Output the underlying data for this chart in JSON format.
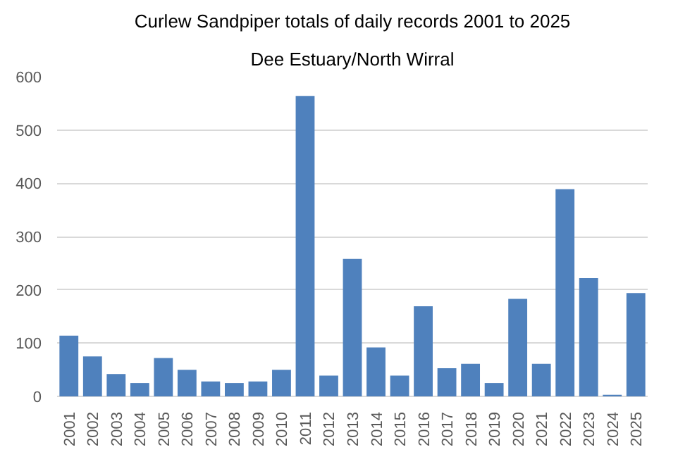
{
  "chart_data": {
    "type": "bar",
    "title": "Curlew Sandpiper totals of daily records 2001 to 2025",
    "subtitle": "Dee Estuary/North Wirral",
    "categories": [
      "2001",
      "2002",
      "2003",
      "2004",
      "2005",
      "2006",
      "2007",
      "2008",
      "2009",
      "2010",
      "2011",
      "2012",
      "2013",
      "2014",
      "2015",
      "2016",
      "2017",
      "2018",
      "2019",
      "2020",
      "2021",
      "2022",
      "2023",
      "2024",
      "2025"
    ],
    "values": [
      114,
      75,
      42,
      25,
      72,
      50,
      28,
      25,
      28,
      50,
      564,
      39,
      258,
      92,
      39,
      169,
      53,
      61,
      25,
      183,
      61,
      389,
      222,
      3,
      194
    ],
    "color": "#4f81bd",
    "ylim": [
      0,
      600
    ],
    "yticks": [
      0,
      100,
      200,
      300,
      400,
      500,
      600
    ],
    "grid": "y"
  }
}
